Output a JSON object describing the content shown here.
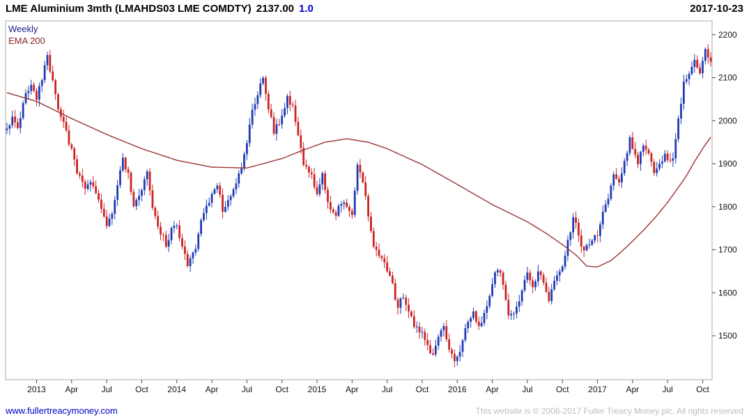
{
  "header": {
    "title_main": "LME Aluminium 3mth (LMAHDS03 LME COMDTY)",
    "last_price": "2137.00",
    "multiplier": "1.0",
    "date": "2017-10-23"
  },
  "legend": {
    "timeframe": "Weekly",
    "overlay": "EMA 200"
  },
  "footer": {
    "website": "www.fullertreacymoney.com",
    "copyright": "This website is © 2008-2017 Fuller Treacy Money plc. All rights reserved"
  },
  "chart_data": {
    "type": "candlestick",
    "title": "LME Aluminium 3mth (LMAHDS03 LME COMDTY)",
    "timeframe": "Weekly",
    "overlay": "EMA 200",
    "last_close": 2137.0,
    "y_ticks": [
      1500,
      1600,
      1700,
      1800,
      1900,
      2000,
      2100,
      2200
    ],
    "y_range": [
      1398,
      2232
    ],
    "weeks_total": 262,
    "x_ticks": [
      {
        "label": "2013",
        "week": 11
      },
      {
        "label": "Apr",
        "week": 24
      },
      {
        "label": "Jul",
        "week": 37
      },
      {
        "label": "Oct",
        "week": 50
      },
      {
        "label": "2014",
        "week": 63
      },
      {
        "label": "Apr",
        "week": 76
      },
      {
        "label": "Jul",
        "week": 89
      },
      {
        "label": "Oct",
        "week": 102
      },
      {
        "label": "2015",
        "week": 115
      },
      {
        "label": "Apr",
        "week": 128
      },
      {
        "label": "Jul",
        "week": 141
      },
      {
        "label": "Oct",
        "week": 154
      },
      {
        "label": "2016",
        "week": 167
      },
      {
        "label": "Apr",
        "week": 180
      },
      {
        "label": "Jul",
        "week": 193
      },
      {
        "label": "Oct",
        "week": 206
      },
      {
        "label": "2017",
        "week": 219
      },
      {
        "label": "Apr",
        "week": 232
      },
      {
        "label": "Jul",
        "week": 245
      },
      {
        "label": "Oct",
        "week": 258
      }
    ],
    "price_anchors": [
      [
        0,
        1980
      ],
      [
        2,
        2010
      ],
      [
        4,
        1975
      ],
      [
        6,
        2040
      ],
      [
        9,
        2090
      ],
      [
        11,
        2050
      ],
      [
        13,
        2100
      ],
      [
        15,
        2150
      ],
      [
        17,
        2090
      ],
      [
        19,
        2030
      ],
      [
        21,
        1990
      ],
      [
        24,
        1930
      ],
      [
        26,
        1880
      ],
      [
        29,
        1840
      ],
      [
        32,
        1855
      ],
      [
        35,
        1790
      ],
      [
        37,
        1760
      ],
      [
        39,
        1785
      ],
      [
        41,
        1845
      ],
      [
        43,
        1915
      ],
      [
        45,
        1875
      ],
      [
        47,
        1805
      ],
      [
        50,
        1845
      ],
      [
        52,
        1875
      ],
      [
        54,
        1790
      ],
      [
        56,
        1755
      ],
      [
        59,
        1715
      ],
      [
        61,
        1745
      ],
      [
        63,
        1755
      ],
      [
        65,
        1700
      ],
      [
        67,
        1665
      ],
      [
        70,
        1705
      ],
      [
        72,
        1770
      ],
      [
        76,
        1825
      ],
      [
        78,
        1855
      ],
      [
        80,
        1795
      ],
      [
        82,
        1815
      ],
      [
        85,
        1855
      ],
      [
        87,
        1885
      ],
      [
        89,
        1955
      ],
      [
        91,
        2020
      ],
      [
        93,
        2060
      ],
      [
        95,
        2100
      ],
      [
        97,
        2030
      ],
      [
        99,
        1975
      ],
      [
        102,
        2005
      ],
      [
        104,
        2055
      ],
      [
        106,
        2030
      ],
      [
        108,
        1960
      ],
      [
        110,
        1905
      ],
      [
        113,
        1870
      ],
      [
        115,
        1835
      ],
      [
        117,
        1870
      ],
      [
        119,
        1805
      ],
      [
        122,
        1785
      ],
      [
        125,
        1815
      ],
      [
        128,
        1785
      ],
      [
        130,
        1895
      ],
      [
        132,
        1855
      ],
      [
        134,
        1785
      ],
      [
        136,
        1715
      ],
      [
        138,
        1685
      ],
      [
        141,
        1655
      ],
      [
        143,
        1615
      ],
      [
        145,
        1565
      ],
      [
        147,
        1595
      ],
      [
        149,
        1555
      ],
      [
        151,
        1525
      ],
      [
        154,
        1505
      ],
      [
        156,
        1475
      ],
      [
        158,
        1455
      ],
      [
        160,
        1495
      ],
      [
        162,
        1515
      ],
      [
        164,
        1475
      ],
      [
        166,
        1445
      ],
      [
        167,
        1455
      ],
      [
        169,
        1485
      ],
      [
        171,
        1535
      ],
      [
        173,
        1555
      ],
      [
        175,
        1515
      ],
      [
        177,
        1555
      ],
      [
        179,
        1585
      ],
      [
        180,
        1620
      ],
      [
        182,
        1660
      ],
      [
        184,
        1625
      ],
      [
        186,
        1555
      ],
      [
        188,
        1545
      ],
      [
        190,
        1585
      ],
      [
        193,
        1645
      ],
      [
        195,
        1615
      ],
      [
        197,
        1645
      ],
      [
        199,
        1625
      ],
      [
        201,
        1585
      ],
      [
        203,
        1635
      ],
      [
        206,
        1665
      ],
      [
        208,
        1715
      ],
      [
        210,
        1775
      ],
      [
        212,
        1735
      ],
      [
        214,
        1695
      ],
      [
        216,
        1715
      ],
      [
        219,
        1735
      ],
      [
        221,
        1795
      ],
      [
        223,
        1825
      ],
      [
        225,
        1875
      ],
      [
        227,
        1855
      ],
      [
        229,
        1905
      ],
      [
        231,
        1955
      ],
      [
        232,
        1935
      ],
      [
        234,
        1905
      ],
      [
        236,
        1945
      ],
      [
        238,
        1925
      ],
      [
        240,
        1885
      ],
      [
        242,
        1895
      ],
      [
        244,
        1925
      ],
      [
        245,
        1905
      ],
      [
        247,
        1915
      ],
      [
        249,
        2005
      ],
      [
        251,
        2085
      ],
      [
        253,
        2115
      ],
      [
        255,
        2145
      ],
      [
        257,
        2105
      ],
      [
        258,
        2135
      ],
      [
        259,
        2165
      ],
      [
        260,
        2150
      ],
      [
        261,
        2137
      ]
    ],
    "ema_anchors": [
      [
        0,
        2065
      ],
      [
        11,
        2045
      ],
      [
        24,
        2005
      ],
      [
        37,
        1968
      ],
      [
        50,
        1935
      ],
      [
        63,
        1908
      ],
      [
        76,
        1892
      ],
      [
        89,
        1890
      ],
      [
        102,
        1912
      ],
      [
        110,
        1932
      ],
      [
        118,
        1950
      ],
      [
        126,
        1958
      ],
      [
        134,
        1950
      ],
      [
        141,
        1935
      ],
      [
        154,
        1898
      ],
      [
        167,
        1852
      ],
      [
        180,
        1805
      ],
      [
        193,
        1765
      ],
      [
        200,
        1738
      ],
      [
        206,
        1712
      ],
      [
        211,
        1688
      ],
      [
        215,
        1662
      ],
      [
        219,
        1660
      ],
      [
        224,
        1675
      ],
      [
        228,
        1696
      ],
      [
        232,
        1720
      ],
      [
        236,
        1745
      ],
      [
        240,
        1772
      ],
      [
        245,
        1810
      ],
      [
        249,
        1845
      ],
      [
        252,
        1872
      ],
      [
        255,
        1905
      ],
      [
        258,
        1935
      ],
      [
        261,
        1962
      ]
    ],
    "colors": {
      "up": "#1f3ab4",
      "down": "#cc2222",
      "ema": "#993333",
      "axis": "#444444",
      "border": "#aaaaaa"
    }
  }
}
